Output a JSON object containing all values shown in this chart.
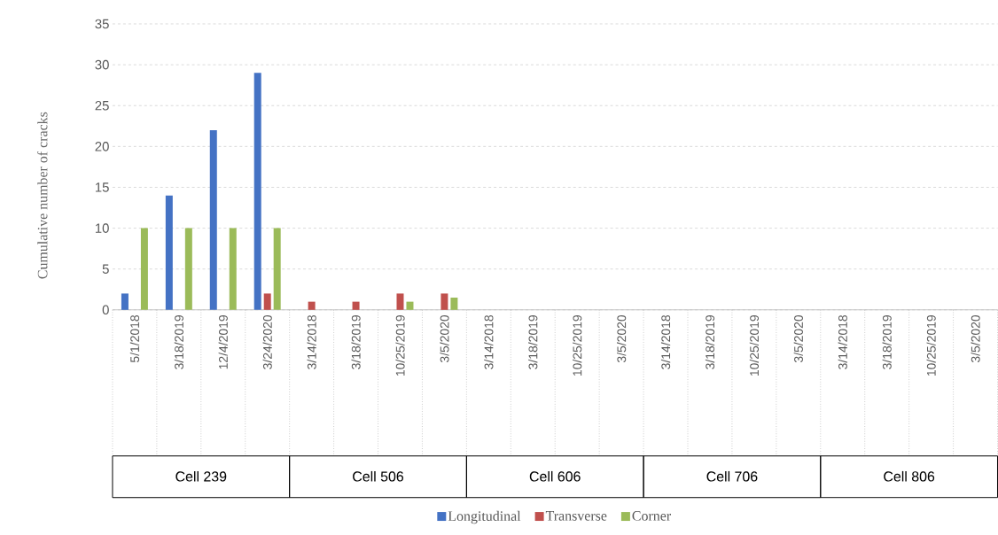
{
  "chart_data": {
    "type": "bar",
    "ylabel": "Cumulative number of cracks",
    "categories": [
      "5/1/2018",
      "3/18/2019",
      "12/4/2019",
      "3/24/2020",
      "3/14/2018",
      "3/18/2019",
      "10/25/2019",
      "3/5/2020",
      "3/14/2018",
      "3/18/2019",
      "10/25/2019",
      "3/5/2020",
      "3/14/2018",
      "3/18/2019",
      "10/25/2019",
      "3/5/2020",
      "3/14/2018",
      "3/18/2019",
      "10/25/2019",
      "3/5/2020"
    ],
    "series": [
      {
        "name": "Longitudinal",
        "color": "#4472c4",
        "values": [
          2,
          14,
          22,
          29,
          0,
          0,
          0,
          0,
          0,
          0,
          0,
          0,
          0,
          0,
          0,
          0,
          0,
          0,
          0,
          0
        ]
      },
      {
        "name": "Transverse",
        "color": "#c0504d",
        "values": [
          0,
          0,
          0,
          2,
          1,
          1,
          2,
          2,
          0,
          0,
          0,
          0,
          0,
          0,
          0,
          0,
          0,
          0,
          0,
          0
        ]
      },
      {
        "name": "Corner",
        "color": "#9bbb59",
        "values": [
          10,
          10,
          10,
          10,
          0,
          0,
          1,
          1.5,
          0,
          0,
          0,
          0,
          0,
          0,
          0,
          0,
          0,
          0,
          0,
          0
        ]
      }
    ],
    "annotations": [
      "Cell 239",
      "Cell 506",
      "Cell 606",
      "Cell 706",
      "Cell 806"
    ],
    "ylim": [
      0,
      35
    ],
    "yticks": [
      0,
      5,
      10,
      15,
      20,
      25,
      30,
      35
    ],
    "grid": "y",
    "legend": "bottom"
  }
}
